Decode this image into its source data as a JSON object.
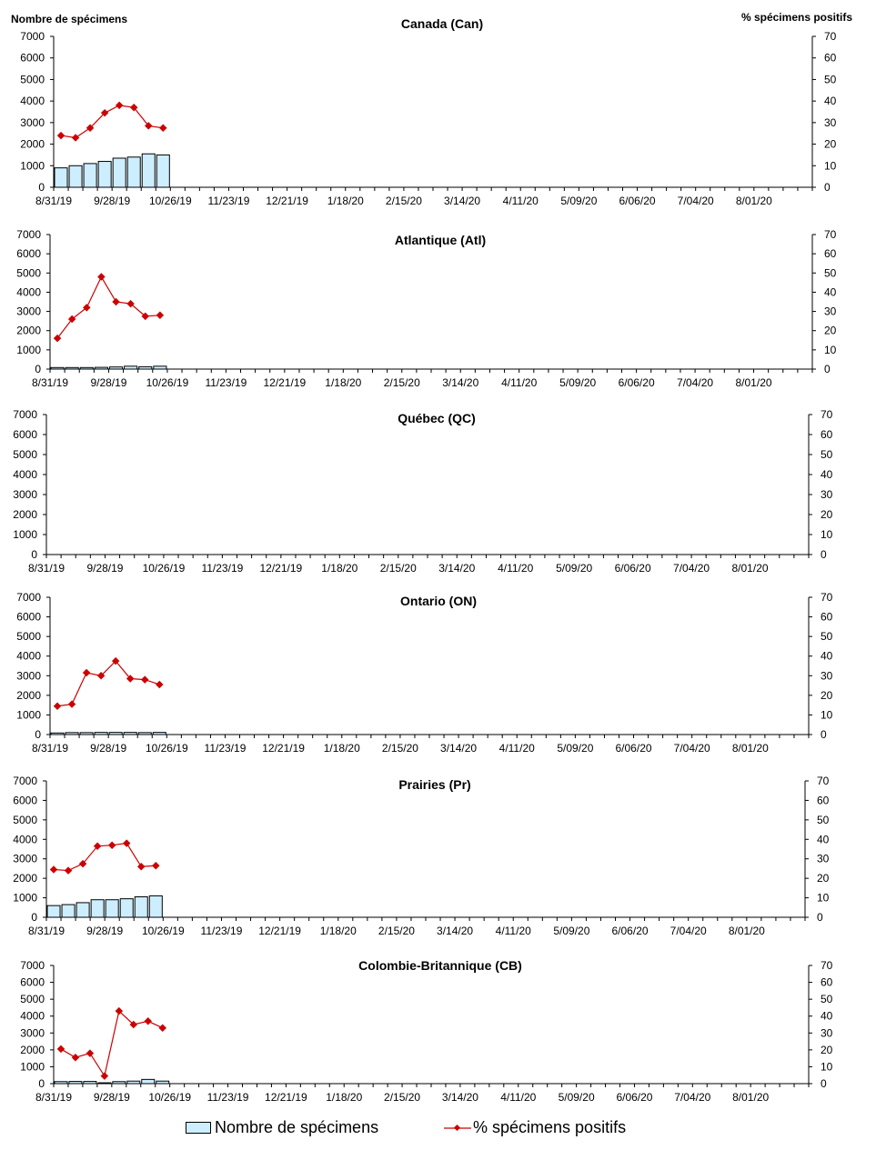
{
  "y_left_title": "Nombre de spécimens",
  "y_right_title": "% spécimens positifs",
  "x_tick_labels": [
    "8/31/19",
    "9/28/19",
    "10/26/19",
    "11/23/19",
    "12/21/19",
    "1/18/20",
    "2/15/20",
    "3/14/20",
    "4/11/20",
    "5/09/20",
    "6/06/20",
    "7/04/20",
    "8/01/20"
  ],
  "y_left_ticks": [
    "0",
    "1000",
    "2000",
    "3000",
    "4000",
    "5000",
    "6000",
    "7000"
  ],
  "y_right_ticks": [
    "0",
    "10",
    "20",
    "30",
    "40",
    "50",
    "60",
    "70"
  ],
  "colors": {
    "bar_fill": "#cceeff",
    "bar_stroke": "#000000",
    "line": "#cc0000"
  },
  "legend": {
    "bars": "Nombre de spécimens",
    "line": "% spécimens positifs"
  },
  "chart_data": [
    {
      "type": "bar",
      "title": "Canada (Can)",
      "ylim": [
        0,
        7000
      ],
      "y2lim": [
        0,
        70
      ],
      "weeks_on_axis": 52,
      "series": [
        {
          "name": "Nombre de spécimens",
          "kind": "bar",
          "values": [
            900,
            1000,
            1100,
            1200,
            1350,
            1400,
            1550,
            1500
          ]
        },
        {
          "name": "% spécimens positifs",
          "kind": "line",
          "values": [
            24,
            23,
            27.5,
            34.5,
            38,
            37,
            28.5,
            27.5
          ]
        }
      ]
    },
    {
      "type": "bar",
      "title": "Atlantique (Atl)",
      "ylim": [
        0,
        7000
      ],
      "y2lim": [
        0,
        70
      ],
      "weeks_on_axis": 52,
      "series": [
        {
          "name": "Nombre de spécimens",
          "kind": "bar",
          "values": [
            80,
            80,
            80,
            90,
            110,
            150,
            120,
            150
          ]
        },
        {
          "name": "% spécimens positifs",
          "kind": "line",
          "values": [
            16,
            26,
            32,
            48,
            35,
            34,
            27.5,
            28
          ]
        }
      ]
    },
    {
      "type": "bar",
      "title": "Québec (QC)",
      "ylim": [
        0,
        7000
      ],
      "y2lim": [
        0,
        70
      ],
      "weeks_on_axis": 52,
      "series": [
        {
          "name": "Nombre de spécimens",
          "kind": "bar",
          "values": []
        },
        {
          "name": "% spécimens positifs",
          "kind": "line",
          "values": []
        }
      ]
    },
    {
      "type": "bar",
      "title": "Ontario (ON)",
      "ylim": [
        0,
        7000
      ],
      "y2lim": [
        0,
        70
      ],
      "weeks_on_axis": 52,
      "series": [
        {
          "name": "Nombre de spécimens",
          "kind": "bar",
          "values": [
            80,
            100,
            100,
            110,
            110,
            110,
            100,
            110
          ]
        },
        {
          "name": "% spécimens positifs",
          "kind": "line",
          "values": [
            14.5,
            15.5,
            31.5,
            30,
            37.5,
            28.5,
            28,
            25.5
          ]
        }
      ]
    },
    {
      "type": "bar",
      "title": "Prairies (Pr)",
      "ylim": [
        0,
        7000
      ],
      "y2lim": [
        0,
        70
      ],
      "weeks_on_axis": 52,
      "series": [
        {
          "name": "Nombre de spécimens",
          "kind": "bar",
          "values": [
            600,
            650,
            750,
            900,
            900,
            950,
            1050,
            1100
          ]
        },
        {
          "name": "% spécimens positifs",
          "kind": "line",
          "values": [
            24.5,
            24,
            27.5,
            36.5,
            37,
            38,
            26,
            26.5
          ]
        }
      ]
    },
    {
      "type": "bar",
      "title": "Colombie-Britannique (CB)",
      "ylim": [
        0,
        7000
      ],
      "y2lim": [
        0,
        70
      ],
      "weeks_on_axis": 52,
      "series": [
        {
          "name": "Nombre de spécimens",
          "kind": "bar",
          "values": [
            120,
            130,
            130,
            50,
            120,
            150,
            250,
            150
          ]
        },
        {
          "name": "% spécimens positifs",
          "kind": "line",
          "values": [
            20.5,
            15.5,
            18,
            4.5,
            43,
            35,
            37,
            33
          ]
        }
      ]
    }
  ]
}
